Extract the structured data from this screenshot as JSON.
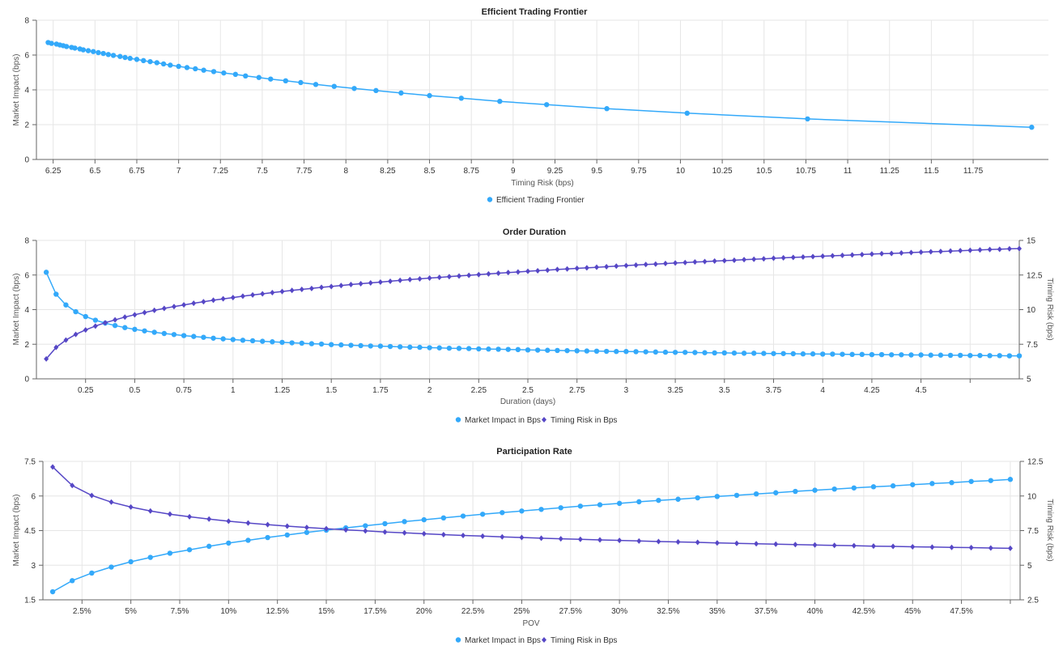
{
  "colors": {
    "market_impact": "#33a9fa",
    "timing_risk": "#5647c6"
  },
  "chart_data": [
    {
      "type": "line",
      "title": "Efficient Trading Frontier",
      "xlabel": "Timing Risk (bps)",
      "ylabel": "Market Impact (bps)",
      "xlim": [
        6.15,
        12.2
      ],
      "ylim": [
        0,
        8
      ],
      "x_ticks": [
        6.25,
        6.5,
        6.75,
        7,
        7.25,
        7.5,
        7.75,
        8,
        8.25,
        8.5,
        8.75,
        9,
        9.25,
        9.5,
        9.75,
        10,
        10.25,
        10.5,
        10.75,
        11,
        11.25,
        11.5,
        11.75
      ],
      "x_tick_labels": [
        "6.25",
        "6.5",
        "6.75",
        "7",
        "7.25",
        "7.5",
        "7.75",
        "8",
        "8.25",
        "8.5",
        "8.75",
        "9",
        "9.25",
        "9.5",
        "9.75",
        "10",
        "10.25",
        "10.5",
        "10.75",
        "11",
        "11.25",
        "11.5",
        "11.75"
      ],
      "y_ticks": [
        0,
        2,
        4,
        6,
        8
      ],
      "y_tick_labels": [
        "0",
        "2",
        "4",
        "6",
        "8"
      ],
      "grid": true,
      "legend_placement": "bottom-center",
      "x": [
        6.22,
        6.24,
        6.27,
        6.29,
        6.31,
        6.33,
        6.36,
        6.38,
        6.41,
        6.43,
        6.46,
        6.49,
        6.52,
        6.55,
        6.58,
        6.61,
        6.65,
        6.68,
        6.71,
        6.75,
        6.79,
        6.83,
        6.87,
        6.91,
        6.95,
        7.0,
        7.05,
        7.1,
        7.15,
        7.21,
        7.27,
        7.34,
        7.4,
        7.48,
        7.55,
        7.64,
        7.73,
        7.82,
        7.93,
        8.05,
        8.18,
        8.33,
        8.5,
        8.69,
        8.92,
        9.2,
        9.56,
        10.04,
        10.76,
        12.1
      ],
      "series": [
        {
          "name": "Efficient Trading Frontier",
          "axis": "left",
          "marker": "circle",
          "color_key": "market_impact",
          "values": [
            6.72,
            6.67,
            6.63,
            6.58,
            6.54,
            6.49,
            6.44,
            6.4,
            6.35,
            6.3,
            6.25,
            6.2,
            6.14,
            6.09,
            6.03,
            5.98,
            5.92,
            5.86,
            5.81,
            5.75,
            5.68,
            5.62,
            5.56,
            5.49,
            5.42,
            5.35,
            5.28,
            5.21,
            5.13,
            5.05,
            4.97,
            4.89,
            4.8,
            4.71,
            4.62,
            4.52,
            4.42,
            4.31,
            4.2,
            4.08,
            3.96,
            3.82,
            3.67,
            3.52,
            3.34,
            3.15,
            2.92,
            2.66,
            2.33,
            1.85
          ]
        }
      ]
    },
    {
      "type": "line",
      "title": "Order Duration",
      "xlabel": "Duration (days)",
      "ylabel": "Market Impact (bps)",
      "ylabel_right": "Timing Risk (bps)",
      "xlim": [
        0,
        5.0
      ],
      "ylim": [
        0,
        8
      ],
      "ylim_right": [
        5,
        15
      ],
      "x_ticks": [
        0.25,
        0.5,
        0.75,
        1,
        1.25,
        1.5,
        1.75,
        2,
        2.25,
        2.5,
        2.75,
        3,
        3.25,
        3.5,
        3.75,
        4,
        4.25,
        4.5,
        4.75
      ],
      "x_tick_labels": [
        "0.25",
        "0.5",
        "0.75",
        "1",
        "1.25",
        "1.5",
        "1.75",
        "2",
        "2.25",
        "2.5",
        "2.75",
        "3",
        "3.25",
        "3.5",
        "3.75",
        "4",
        "4.25",
        "4.5",
        ""
      ],
      "y_ticks": [
        0,
        2,
        4,
        6,
        8
      ],
      "y_tick_labels": [
        "0",
        "2",
        "4",
        "6",
        "8"
      ],
      "y_ticks_right": [
        5,
        7.5,
        10,
        12.5,
        15
      ],
      "y_tick_labels_right": [
        "5",
        "7.5",
        "10",
        "12.5",
        "15"
      ],
      "grid": true,
      "legend_placement": "bottom-center",
      "x": [
        0.05,
        0.1,
        0.15,
        0.2,
        0.25,
        0.3,
        0.35,
        0.4,
        0.45,
        0.5,
        0.55,
        0.6,
        0.65,
        0.7,
        0.75,
        0.8,
        0.85,
        0.9,
        0.95,
        1.0,
        1.05,
        1.1,
        1.15,
        1.2,
        1.25,
        1.3,
        1.35,
        1.4,
        1.45,
        1.5,
        1.55,
        1.6,
        1.65,
        1.7,
        1.75,
        1.8,
        1.85,
        1.9,
        1.95,
        2.0,
        2.05,
        2.1,
        2.15,
        2.2,
        2.25,
        2.3,
        2.35,
        2.4,
        2.45,
        2.5,
        2.55,
        2.6,
        2.65,
        2.7,
        2.75,
        2.8,
        2.85,
        2.9,
        2.95,
        3.0,
        3.05,
        3.1,
        3.15,
        3.2,
        3.25,
        3.3,
        3.35,
        3.4,
        3.45,
        3.5,
        3.55,
        3.6,
        3.65,
        3.7,
        3.75,
        3.8,
        3.85,
        3.9,
        3.95,
        4.0,
        4.05,
        4.1,
        4.15,
        4.2,
        4.25,
        4.3,
        4.35,
        4.4,
        4.45,
        4.5,
        4.55,
        4.6,
        4.65,
        4.7,
        4.75,
        4.8,
        4.85,
        4.9,
        4.95,
        5.0
      ],
      "series": [
        {
          "name": "Market Impact in Bps",
          "axis": "left",
          "marker": "circle",
          "color_key": "market_impact",
          "values": [
            6.16,
            4.89,
            4.27,
            3.88,
            3.6,
            3.39,
            3.22,
            3.08,
            2.96,
            2.86,
            2.77,
            2.69,
            2.62,
            2.56,
            2.5,
            2.45,
            2.4,
            2.35,
            2.31,
            2.27,
            2.23,
            2.2,
            2.17,
            2.14,
            2.11,
            2.08,
            2.06,
            2.03,
            2.01,
            1.98,
            1.96,
            1.94,
            1.92,
            1.9,
            1.89,
            1.87,
            1.85,
            1.83,
            1.82,
            1.8,
            1.79,
            1.77,
            1.76,
            1.75,
            1.73,
            1.72,
            1.71,
            1.7,
            1.69,
            1.67,
            1.66,
            1.65,
            1.64,
            1.63,
            1.62,
            1.61,
            1.6,
            1.59,
            1.58,
            1.58,
            1.57,
            1.56,
            1.55,
            1.54,
            1.53,
            1.53,
            1.52,
            1.51,
            1.5,
            1.5,
            1.49,
            1.48,
            1.48,
            1.47,
            1.46,
            1.46,
            1.45,
            1.44,
            1.44,
            1.43,
            1.43,
            1.42,
            1.41,
            1.41,
            1.4,
            1.4,
            1.39,
            1.39,
            1.38,
            1.38,
            1.37,
            1.37,
            1.36,
            1.36,
            1.35,
            1.35,
            1.34,
            1.34,
            1.33,
            1.33
          ]
        },
        {
          "name": "Timing Risk in Bps",
          "axis": "right",
          "marker": "diamond",
          "color_key": "timing_risk",
          "values": [
            6.44,
            7.27,
            7.8,
            8.21,
            8.53,
            8.81,
            9.05,
            9.26,
            9.46,
            9.63,
            9.79,
            9.95,
            10.09,
            10.22,
            10.34,
            10.46,
            10.57,
            10.68,
            10.78,
            10.87,
            10.97,
            11.06,
            11.14,
            11.23,
            11.31,
            11.39,
            11.46,
            11.53,
            11.61,
            11.67,
            11.74,
            11.81,
            11.87,
            11.93,
            11.99,
            12.05,
            12.11,
            12.17,
            12.22,
            12.28,
            12.33,
            12.38,
            12.43,
            12.48,
            12.53,
            12.58,
            12.63,
            12.68,
            12.72,
            12.77,
            12.81,
            12.85,
            12.9,
            12.94,
            12.98,
            13.02,
            13.06,
            13.1,
            13.14,
            13.18,
            13.22,
            13.26,
            13.29,
            13.33,
            13.37,
            13.4,
            13.44,
            13.47,
            13.51,
            13.54,
            13.57,
            13.61,
            13.64,
            13.67,
            13.71,
            13.74,
            13.77,
            13.8,
            13.83,
            13.86,
            13.89,
            13.92,
            13.95,
            13.98,
            14.01,
            14.04,
            14.06,
            14.09,
            14.12,
            14.15,
            14.18,
            14.2,
            14.23,
            14.26,
            14.28,
            14.31,
            14.34,
            14.36,
            14.39,
            14.41
          ]
        }
      ]
    },
    {
      "type": "line",
      "title": "Participation Rate",
      "xlabel": "POV",
      "ylabel": "Market Impact (bps)",
      "ylabel_right": "Timing Risk (bps)",
      "xlim": [
        0.5,
        50.5
      ],
      "ylim": [
        1.5,
        7.5
      ],
      "ylim_right": [
        2.5,
        12.5
      ],
      "x_ticks": [
        2.5,
        5,
        7.5,
        10,
        12.5,
        15,
        17.5,
        20,
        22.5,
        25,
        27.5,
        30,
        32.5,
        35,
        37.5,
        40,
        42.5,
        45,
        47.5,
        50
      ],
      "x_tick_labels": [
        "2.5%",
        "5%",
        "7.5%",
        "10%",
        "12.5%",
        "15%",
        "17.5%",
        "20%",
        "22.5%",
        "25%",
        "27.5%",
        "30%",
        "32.5%",
        "35%",
        "37.5%",
        "40%",
        "42.5%",
        "45%",
        "47.5%",
        ""
      ],
      "y_ticks": [
        1.5,
        3,
        4.5,
        6,
        7.5
      ],
      "y_tick_labels": [
        "1.5",
        "3",
        "4.5",
        "6",
        "7.5"
      ],
      "y_ticks_right": [
        2.5,
        5,
        7.5,
        10,
        12.5
      ],
      "y_tick_labels_right": [
        "2.5",
        "5",
        "7.5",
        "10",
        "12.5"
      ],
      "grid": true,
      "legend_placement": "bottom-center",
      "x": [
        1,
        2,
        3,
        4,
        5,
        6,
        7,
        8,
        9,
        10,
        11,
        12,
        13,
        14,
        15,
        16,
        17,
        18,
        19,
        20,
        21,
        22,
        23,
        24,
        25,
        26,
        27,
        28,
        29,
        30,
        31,
        32,
        33,
        34,
        35,
        36,
        37,
        38,
        39,
        40,
        41,
        42,
        43,
        44,
        45,
        46,
        47,
        48,
        49,
        50
      ],
      "series": [
        {
          "name": "Market Impact in Bps",
          "axis": "left",
          "marker": "circle",
          "color_key": "market_impact",
          "values": [
            1.85,
            2.33,
            2.66,
            2.92,
            3.15,
            3.34,
            3.52,
            3.67,
            3.82,
            3.96,
            4.08,
            4.2,
            4.31,
            4.42,
            4.52,
            4.62,
            4.71,
            4.8,
            4.89,
            4.97,
            5.05,
            5.13,
            5.21,
            5.28,
            5.35,
            5.42,
            5.49,
            5.56,
            5.62,
            5.68,
            5.75,
            5.81,
            5.86,
            5.92,
            5.98,
            6.03,
            6.09,
            6.14,
            6.2,
            6.25,
            6.3,
            6.35,
            6.4,
            6.44,
            6.49,
            6.54,
            6.58,
            6.63,
            6.67,
            6.72
          ]
        },
        {
          "name": "Timing Risk in Bps",
          "axis": "right",
          "marker": "diamond",
          "color_key": "timing_risk",
          "values": [
            12.1,
            10.76,
            10.04,
            9.56,
            9.2,
            8.92,
            8.69,
            8.5,
            8.33,
            8.18,
            8.05,
            7.93,
            7.82,
            7.73,
            7.64,
            7.55,
            7.48,
            7.4,
            7.34,
            7.27,
            7.21,
            7.15,
            7.1,
            7.05,
            7.0,
            6.95,
            6.91,
            6.87,
            6.83,
            6.79,
            6.75,
            6.71,
            6.68,
            6.65,
            6.61,
            6.58,
            6.55,
            6.52,
            6.49,
            6.46,
            6.43,
            6.41,
            6.38,
            6.36,
            6.33,
            6.31,
            6.29,
            6.27,
            6.24,
            6.22
          ]
        }
      ]
    }
  ]
}
